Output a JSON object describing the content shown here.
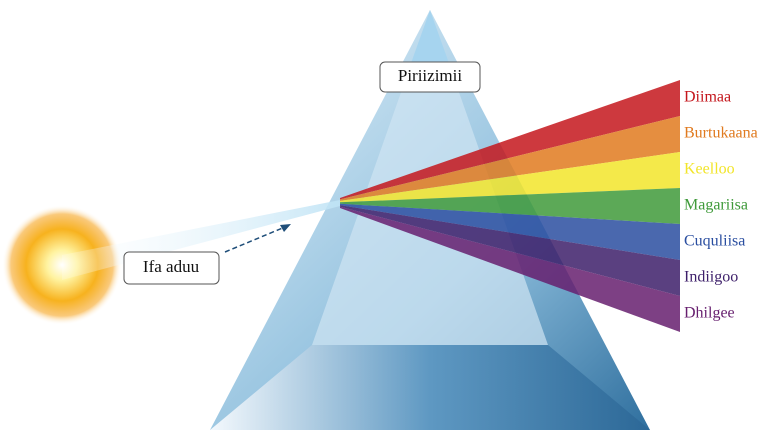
{
  "labels": {
    "prism": "Piriizimii",
    "light": "Ifa aduu"
  },
  "spectrum": [
    {
      "name": "Diimaa",
      "color": "#c4161c"
    },
    {
      "name": "Burtukaana",
      "color": "#e07a1f"
    },
    {
      "name": "Keelloo",
      "color": "#f2e52a"
    },
    {
      "name": "Magariisa",
      "color": "#3f9a3a"
    },
    {
      "name": "Cuquliisa",
      "color": "#2a4ea0"
    },
    {
      "name": "Indiigoo",
      "color": "#3d1f6a"
    },
    {
      "name": "Dhilgee",
      "color": "#661e6e"
    }
  ]
}
